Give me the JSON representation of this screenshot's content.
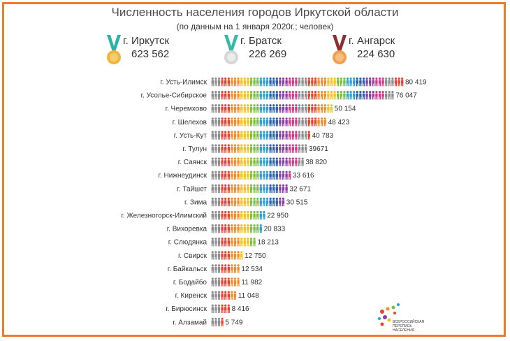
{
  "header": {
    "title": "Численность населения городов Иркутской области",
    "subtitle": "(по данным на 1 января 2020г.; человек)"
  },
  "top_cities": [
    {
      "city": "г. Иркутск",
      "population": "623 562",
      "medal": "gold-medal-icon",
      "ribbon": "#2bb3a6",
      "disc": "#f2b53a"
    },
    {
      "city": "г. Братск",
      "population": "226 269",
      "medal": "silver-medal-icon",
      "ribbon": "#38b9a6",
      "disc": "#d6d6d6"
    },
    {
      "city": "г. Ангарск",
      "population": "224 630",
      "medal": "bronze-medal-icon",
      "ribbon": "#8e2f2f",
      "disc": "#f0a04e"
    }
  ],
  "chart_data": {
    "type": "bar",
    "style": "pictograph",
    "categories": [
      "г. Усть-Илимск",
      "г. Усолье-Сибирское",
      "г. Черемхово",
      "г. Шелехов",
      "г. Усть-Кут",
      "г. Тулун",
      "г. Саянск",
      "г. Нижнеудинск",
      "г. Тайшет",
      "г. Зима",
      "г. Железногорск-Илимский",
      "г. Вихоревка",
      "г. Слюдянка",
      "г. Свирск",
      "г. Байкальск",
      "г. Бодайбо",
      "г. Киренск",
      "г. Бирюсинск",
      "г. Алзамай"
    ],
    "values": [
      80419,
      76047,
      50154,
      48423,
      40783,
      39671,
      38820,
      33616,
      32671,
      30515,
      22950,
      20833,
      18213,
      12750,
      12534,
      11982,
      11048,
      8416,
      5749
    ],
    "value_labels": [
      "80 419",
      "76 047",
      "50 154",
      "48 423",
      "40 783",
      "39671",
      "38 820",
      "33 616",
      "32 671",
      "30 515",
      "22 950",
      "20 833",
      "18 213",
      "12 750",
      "12 534",
      "11 982",
      "11 048",
      "8 416",
      "5 749"
    ],
    "icon_colors": [
      "#8c8c8c",
      "#e8422f",
      "#f28c28",
      "#f6c21c",
      "#7cbf3f",
      "#2a9fd6",
      "#2b5fb0",
      "#8a3fa3",
      "#d9358a"
    ],
    "grid": false,
    "legend": "none"
  },
  "logo": {
    "text": "ВСЕРОССИЙСКАЯ\nПЕРЕПИСЬ\nНАСЕЛЕНИЯ",
    "colors": [
      "#e8422f",
      "#f28c28",
      "#7cbf3f",
      "#2a9fd6",
      "#8a3fa3"
    ]
  }
}
